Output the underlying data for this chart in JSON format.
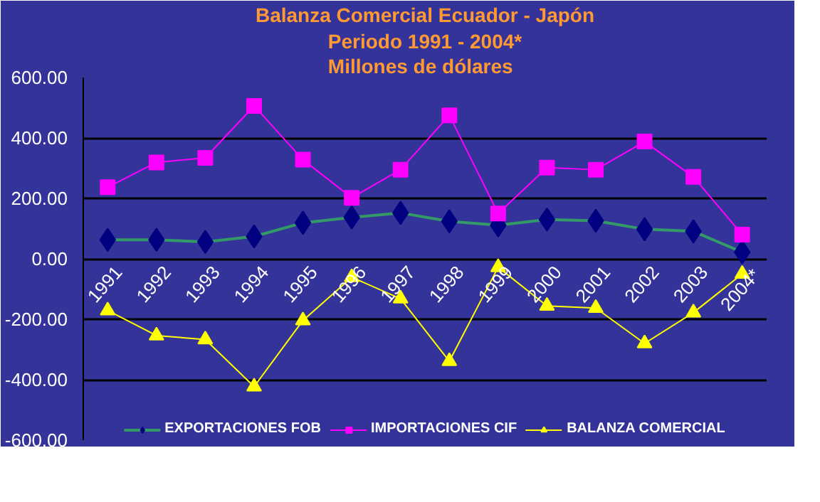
{
  "chart_data": {
    "type": "line",
    "title": "Balanza Comercial Ecuador - Japón",
    "subtitle": "Periodo 1991 - 2004*\nMillones de dólares",
    "categories": [
      "1991",
      "1992",
      "1993",
      "1994",
      "1995",
      "1996",
      "1997",
      "1998",
      "1999",
      "2000",
      "2001",
      "2002",
      "2003",
      "2004*"
    ],
    "series": [
      {
        "name": "EXPORTACIONES FOB",
        "color": "#339966",
        "colors": [
          "#000080",
          "#000080",
          "#000080",
          "#000080",
          "#000080",
          "#000080",
          "#000080",
          "#000080",
          "#000080",
          "#000080",
          "#000080",
          "#000080",
          "#000080",
          "#000080"
        ],
        "marker": "diamond",
        "values": [
          63,
          63,
          56,
          74,
          119,
          137,
          152,
          124,
          111,
          130,
          126,
          98,
          91,
          22
        ]
      },
      {
        "name": "IMPORTACIONES CIF",
        "color": "#ff00ff",
        "marker": "square",
        "values": [
          237,
          319,
          334,
          506,
          328,
          202,
          295,
          475,
          150,
          302,
          295,
          388,
          271,
          80
        ]
      },
      {
        "name": "BALANZA COMERCIAL",
        "color": "#ffff00",
        "marker": "triangle",
        "values": [
          -171,
          -254,
          -267,
          -423,
          -204,
          -61,
          -132,
          -339,
          -28,
          -156,
          -163,
          -280,
          -178,
          -50
        ]
      }
    ],
    "ylim": [
      -600,
      600
    ],
    "yticks": [
      {
        "value": -600,
        "label": "-600.00"
      },
      {
        "value": -400,
        "label": "-400.00"
      },
      {
        "value": -200,
        "label": "-200.00"
      },
      {
        "value": 0,
        "label": "0.00"
      },
      {
        "value": 200,
        "label": "200.00"
      },
      {
        "value": 400,
        "label": "400.00"
      },
      {
        "value": 600,
        "label": "600.00"
      }
    ],
    "grid": "y",
    "legend": "bottom"
  }
}
